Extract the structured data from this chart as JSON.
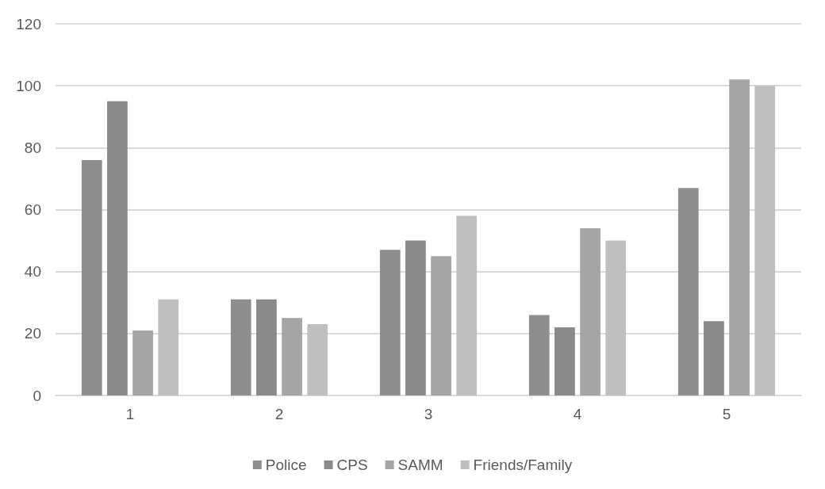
{
  "chart_data": {
    "type": "bar",
    "categories": [
      "1",
      "2",
      "3",
      "4",
      "5"
    ],
    "series": [
      {
        "name": "Police",
        "color": "#8e8e8e",
        "values": [
          76,
          31,
          47,
          26,
          67
        ]
      },
      {
        "name": "CPS",
        "color": "#8a8a8a",
        "values": [
          95,
          31,
          50,
          22,
          24
        ]
      },
      {
        "name": "SAMM",
        "color": "#a5a5a5",
        "values": [
          21,
          25,
          45,
          54,
          102
        ]
      },
      {
        "name": "Friends/Family",
        "color": "#bfbfbf",
        "values": [
          31,
          23,
          58,
          50,
          100
        ]
      }
    ],
    "ylim": [
      0,
      120
    ],
    "yticks": [
      0,
      20,
      40,
      60,
      80,
      100,
      120
    ],
    "grid": "y",
    "legend": "bottom"
  }
}
